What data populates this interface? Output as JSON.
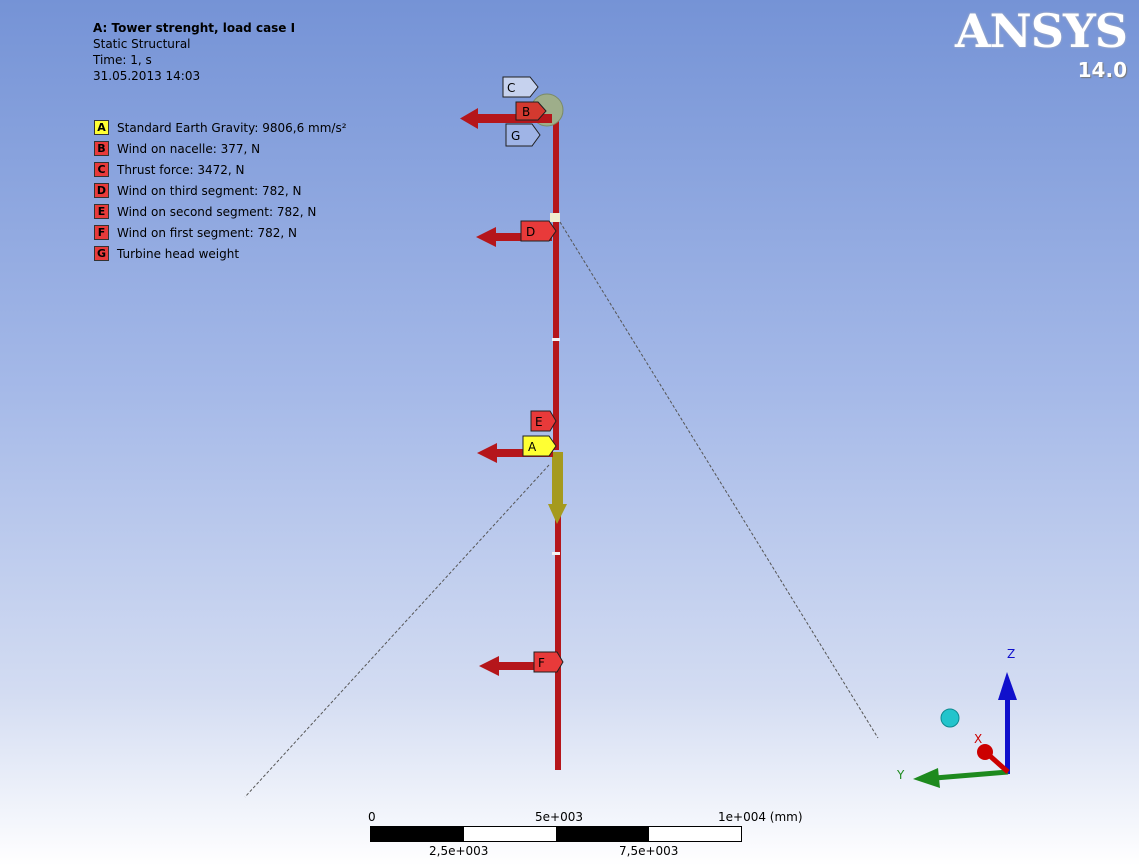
{
  "header": {
    "title": "A: Tower strenght, load case I",
    "analysis": "Static Structural",
    "time": "Time: 1, s",
    "date": "31.05.2013 14:03"
  },
  "legend": [
    {
      "letter": "A",
      "label": "Standard Earth Gravity: 9806,6 mm/s²",
      "color": "#ffff33"
    },
    {
      "letter": "B",
      "label": "Wind on nacelle: 377, N",
      "color": "#e83a3a"
    },
    {
      "letter": "C",
      "label": "Thrust force: 3472, N",
      "color": "#e83a3a"
    },
    {
      "letter": "D",
      "label": "Wind on third segment: 782, N",
      "color": "#e83a3a"
    },
    {
      "letter": "E",
      "label": "Wind on second segment: 782, N",
      "color": "#e83a3a"
    },
    {
      "letter": "F",
      "label": "Wind on first segment: 782, N",
      "color": "#e83a3a"
    },
    {
      "letter": "G",
      "label": "Turbine head weight",
      "color": "#e83a3a"
    }
  ],
  "logo": {
    "brand": "ANSYS",
    "version": "14.0"
  },
  "scene": {
    "tags": {
      "A": "A",
      "B": "B",
      "C": "C",
      "D": "D",
      "E": "E",
      "F": "F",
      "G": "G"
    }
  },
  "scale_bar": {
    "top_labels": [
      "0",
      "5e+003",
      "1e+004 (mm)"
    ],
    "bottom_labels": [
      "2,5e+003",
      "7,5e+003"
    ]
  },
  "triad": {
    "x": "X",
    "y": "Y",
    "z": "Z"
  },
  "colors": {
    "tower": "#b5161b",
    "gravity": "#a59a1e",
    "axis_x": "#cc0000",
    "axis_y": "#1e8a1e",
    "axis_z": "#1010cc"
  }
}
